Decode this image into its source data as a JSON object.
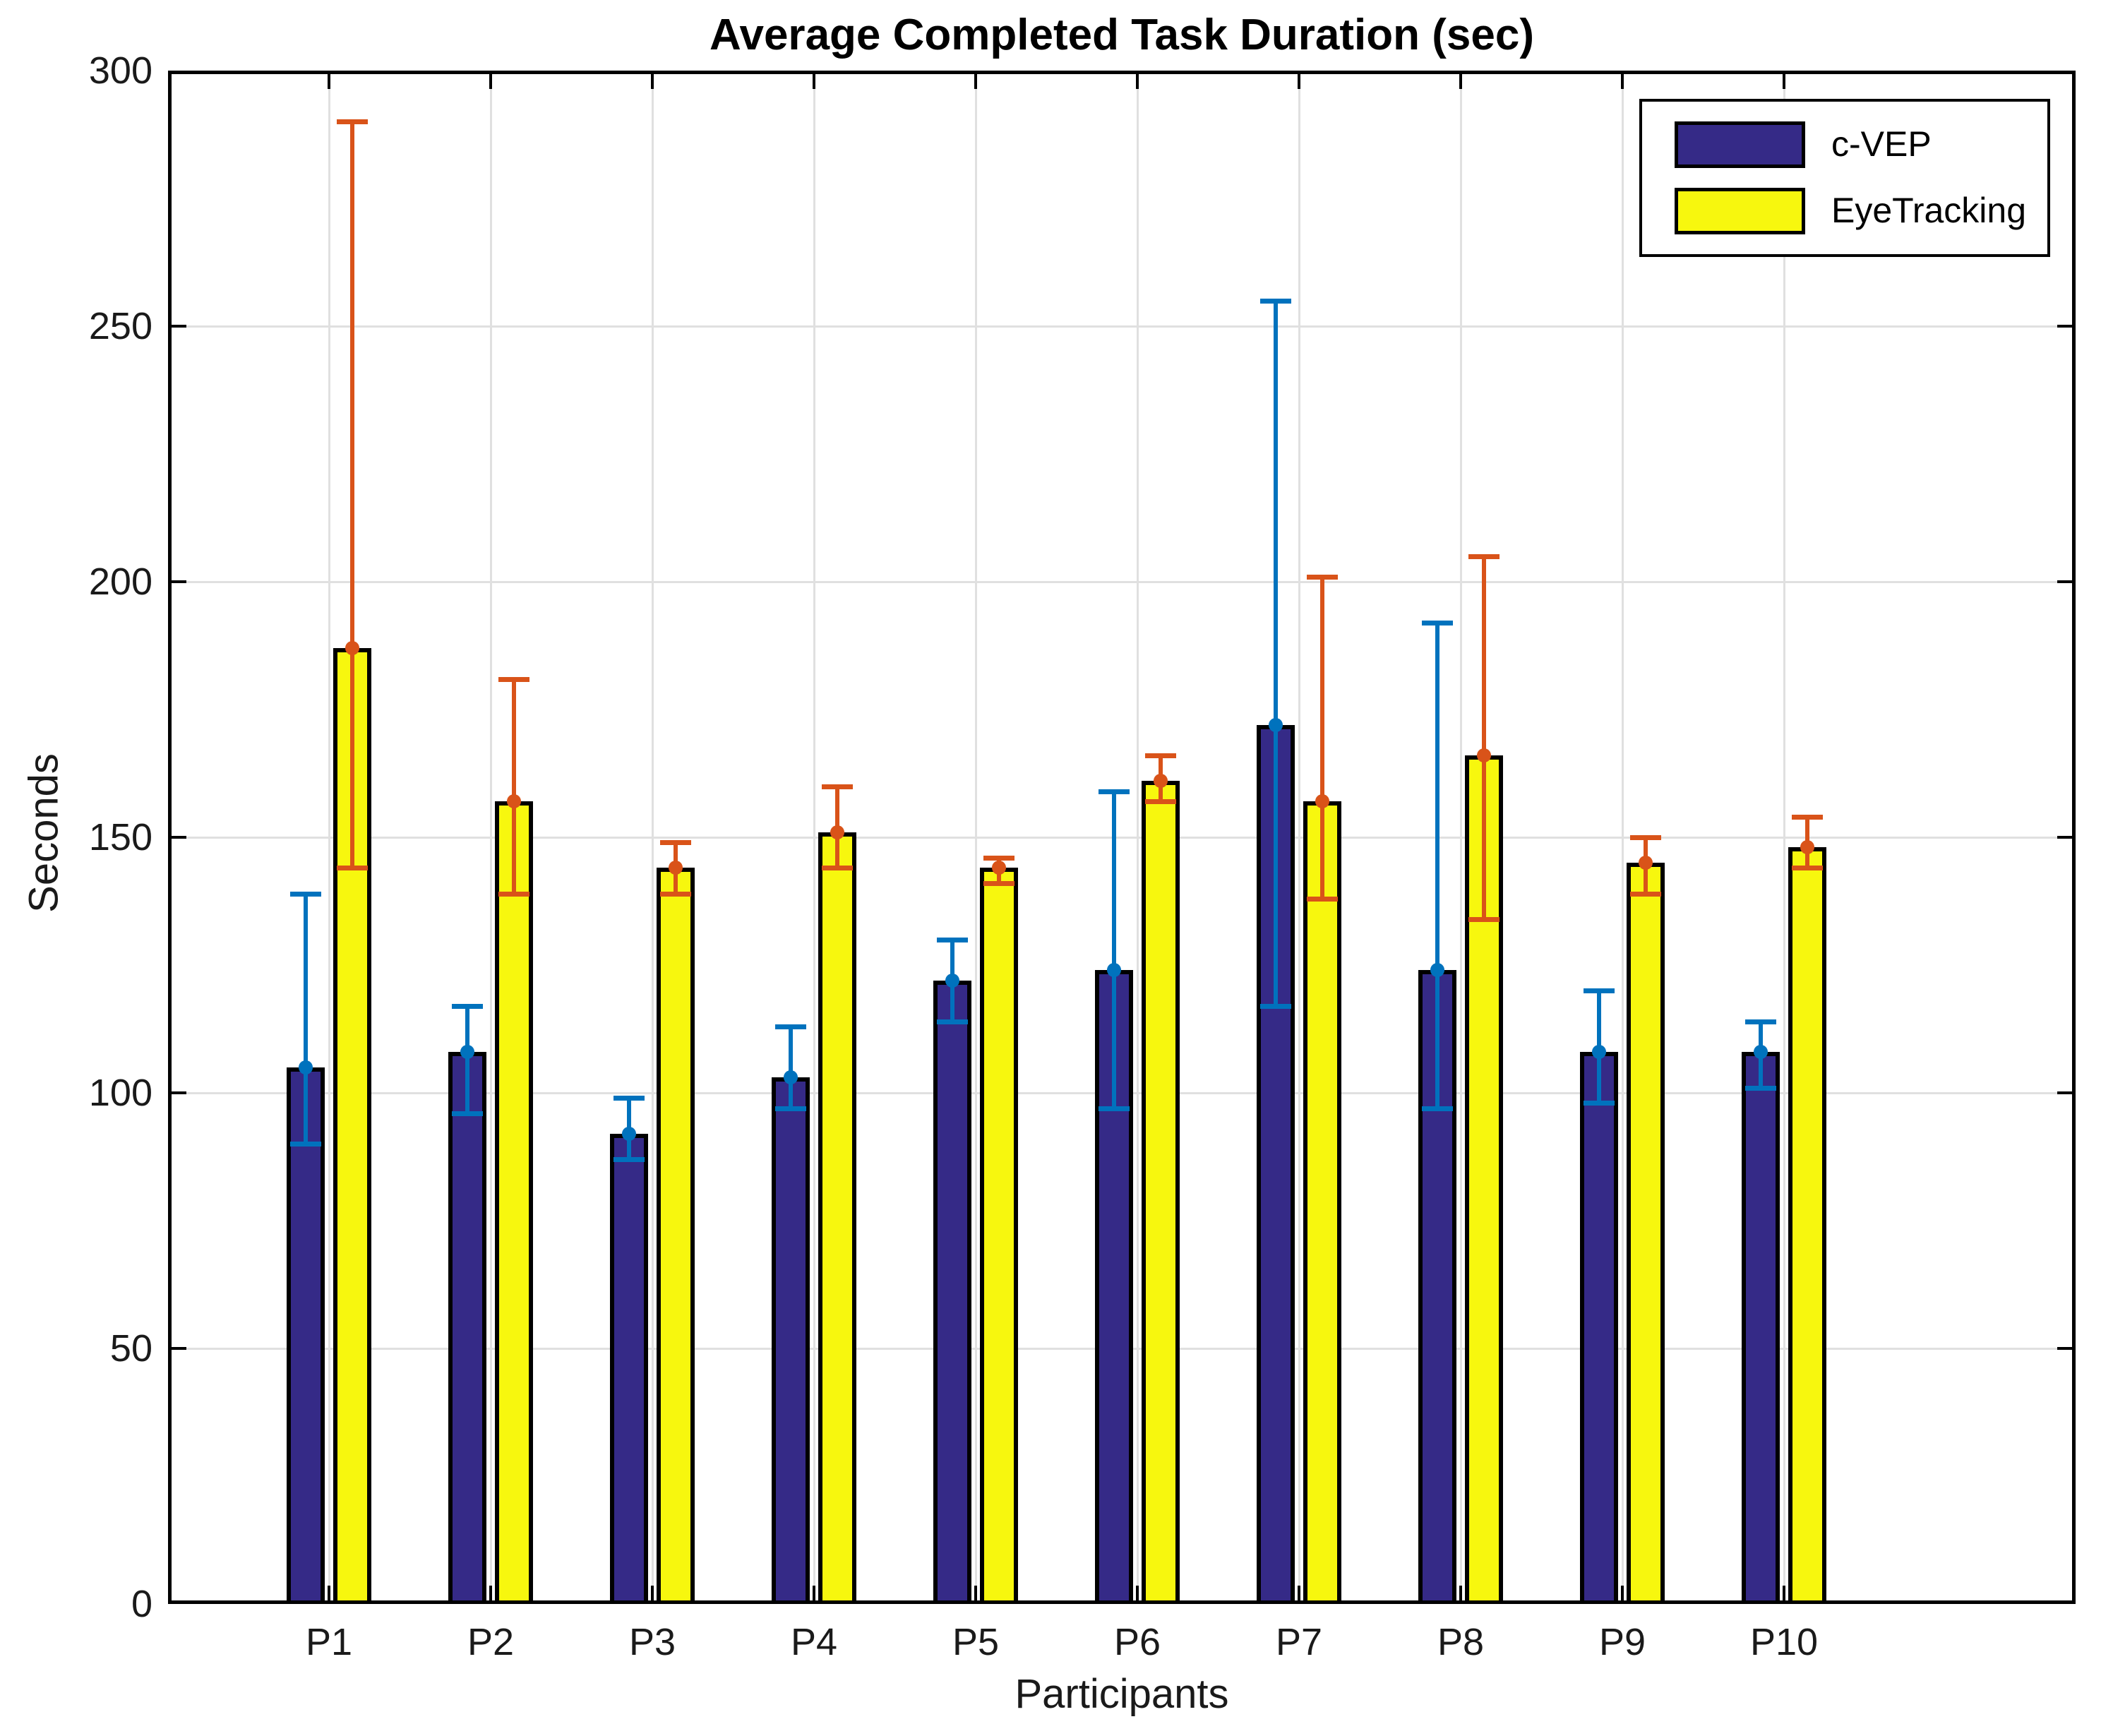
{
  "figure": {
    "title": "Average Completed Task Duration (sec)",
    "xlabel": "Participants",
    "ylabel": "Seconds"
  },
  "legend": {
    "position": "top-right",
    "items": [
      {
        "label": "c-VEP",
        "swatch_color": "#352A87"
      },
      {
        "label": "EyeTracking",
        "swatch_color": "#F7F70E"
      }
    ]
  },
  "colors": {
    "background": "#FFFFFF",
    "axis_box": "#000000",
    "gridline": "#E0E0E0",
    "bar_edge": "#000000",
    "cvep_fill": "#352A87",
    "cvep_error": "#0072BD",
    "eyetracking_fill": "#F7F70E",
    "eyetracking_error": "#D95319",
    "tick_text": "#1A1A1A"
  },
  "chart_data": {
    "type": "bar",
    "title": "Average Completed Task Duration (sec)",
    "xlabel": "Participants",
    "ylabel": "Seconds",
    "categories": [
      "P1",
      "P2",
      "P3",
      "P4",
      "P5",
      "P6",
      "P7",
      "P8",
      "P9",
      "P10"
    ],
    "ylim": [
      0,
      300
    ],
    "yticks": [
      0,
      50,
      100,
      150,
      200,
      250,
      300
    ],
    "grid": true,
    "legend_position": "top-right",
    "series": [
      {
        "name": "c-VEP",
        "color": "#352A87",
        "error_color": "#0072BD",
        "values": [
          105,
          108,
          92,
          103,
          122,
          124,
          172,
          124,
          108,
          108
        ],
        "error_low": [
          90,
          96,
          87,
          97,
          114,
          97,
          117,
          97,
          98,
          101
        ],
        "error_high": [
          139,
          117,
          99,
          113,
          130,
          159,
          255,
          192,
          120,
          114
        ]
      },
      {
        "name": "EyeTracking",
        "color": "#F7F70E",
        "error_color": "#D95319",
        "values": [
          187,
          157,
          144,
          151,
          144,
          161,
          157,
          166,
          145,
          148
        ],
        "error_low": [
          144,
          139,
          139,
          144,
          141,
          157,
          138,
          134,
          139,
          144
        ],
        "error_high": [
          290,
          181,
          149,
          160,
          146,
          166,
          201,
          205,
          150,
          154
        ]
      }
    ]
  }
}
